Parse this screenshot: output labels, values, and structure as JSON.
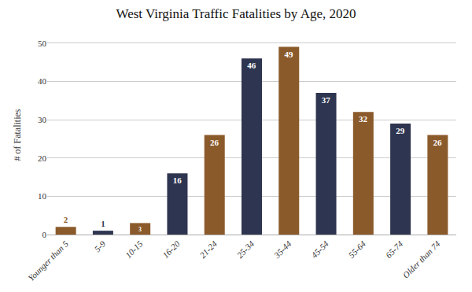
{
  "chart_data": {
    "type": "bar",
    "title": "West Virginia Traffic Fatalities by Age, 2020",
    "ylabel": "# of Fatalities",
    "categories": [
      "Younger than 5",
      "5-9",
      "10-15",
      "16-20",
      "21-24",
      "25-34",
      "35-44",
      "45-54",
      "55-64",
      "65-74",
      "Older than 74"
    ],
    "values": [
      2,
      1,
      3,
      16,
      26,
      46,
      49,
      37,
      32,
      29,
      26
    ],
    "colors": [
      "#8B5A2B",
      "#2E3550",
      "#8B5A2B",
      "#2E3550",
      "#8B5A2B",
      "#2E3550",
      "#8B5A2B",
      "#2E3550",
      "#8B5A2B",
      "#2E3550",
      "#8B5A2B"
    ],
    "ylim": [
      0,
      52
    ],
    "yticks": [
      0,
      10,
      20,
      30,
      40,
      50
    ],
    "grid": true,
    "data_labels": true
  }
}
